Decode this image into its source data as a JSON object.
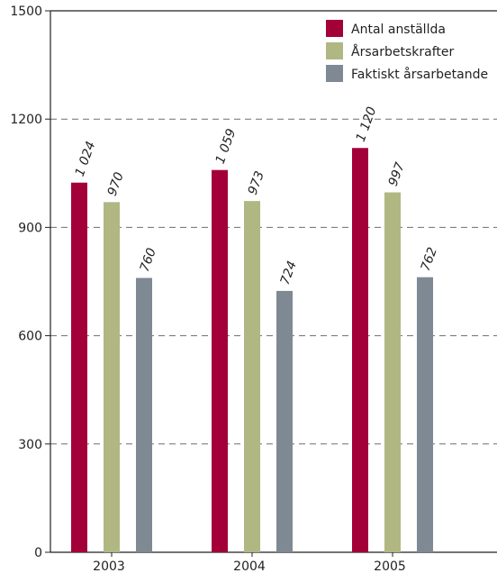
{
  "chart_data": {
    "type": "bar",
    "title": "",
    "xlabel": "",
    "ylabel": "",
    "categories": [
      "2003",
      "2004",
      "2005"
    ],
    "series": [
      {
        "name": "Antal anställda",
        "color": "#a3003a",
        "values": [
          1024,
          1059,
          1120
        ],
        "labels": [
          "1 024",
          "1 059",
          "1 120"
        ]
      },
      {
        "name": "Årsarbetskrafter",
        "color": "#b0b783",
        "values": [
          970,
          973,
          997
        ],
        "labels": [
          "970",
          "973",
          "997"
        ]
      },
      {
        "name": "Faktiskt årsarbetande",
        "color": "#7f8994",
        "values": [
          760,
          724,
          762
        ],
        "labels": [
          "760",
          "724",
          "762"
        ]
      }
    ],
    "ylim": [
      0,
      1500
    ],
    "yticks": [
      0,
      300,
      600,
      900,
      1200,
      1500
    ],
    "ytick_labels": [
      "0",
      "300",
      "600",
      "900",
      "1200",
      "1500"
    ],
    "grid": "horizontal dashed",
    "legend_position": "top-right"
  }
}
